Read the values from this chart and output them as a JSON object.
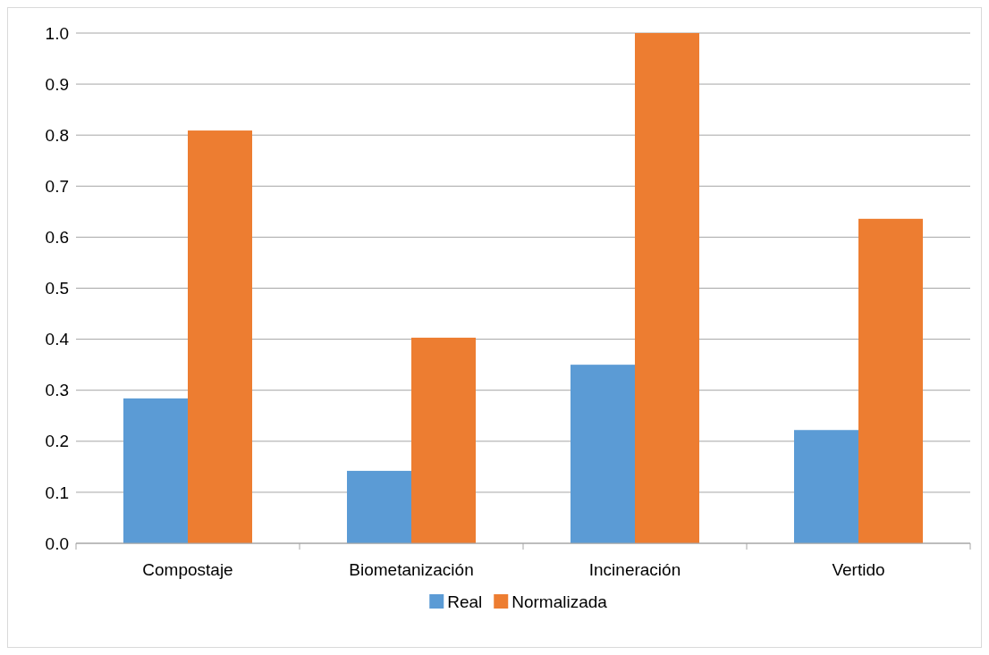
{
  "chart_data": {
    "type": "bar",
    "categories": [
      "Compostaje",
      "Biometanización",
      "Incineración",
      "Vertido"
    ],
    "series": [
      {
        "name": "Real",
        "color": "#5b9bd5",
        "values": [
          0.284,
          0.142,
          0.35,
          0.222
        ]
      },
      {
        "name": "Normalizada",
        "color": "#ed7d31",
        "values": [
          0.809,
          0.403,
          1.0,
          0.636
        ]
      }
    ],
    "ylim": [
      0,
      1
    ],
    "yticks": [
      {
        "value": 0,
        "label": "0.0"
      },
      {
        "value": 0.1,
        "label": "0.1"
      },
      {
        "value": 0.2,
        "label": "0.2"
      },
      {
        "value": 0.3,
        "label": "0.3"
      },
      {
        "value": 0.4,
        "label": "0.4"
      },
      {
        "value": 0.5,
        "label": "0.5"
      },
      {
        "value": 0.6,
        "label": "0.6"
      },
      {
        "value": 0.7,
        "label": "0.7"
      },
      {
        "value": 0.8,
        "label": "0.8"
      },
      {
        "value": 0.9,
        "label": "0.9"
      },
      {
        "value": 1,
        "label": "1.0"
      }
    ],
    "grid": "y",
    "legend": "bottom"
  }
}
